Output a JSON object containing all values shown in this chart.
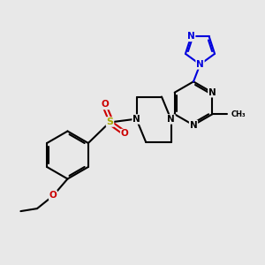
{
  "bg_color": "#e8e8e8",
  "bond_color": "#000000",
  "blue_color": "#0000dd",
  "red_color": "#cc0000",
  "sulfur_color": "#aaaa00",
  "line_width": 1.5,
  "figsize": [
    3.0,
    3.0
  ],
  "dpi": 100,
  "xlim": [
    0,
    10
  ],
  "ylim": [
    0,
    10
  ]
}
